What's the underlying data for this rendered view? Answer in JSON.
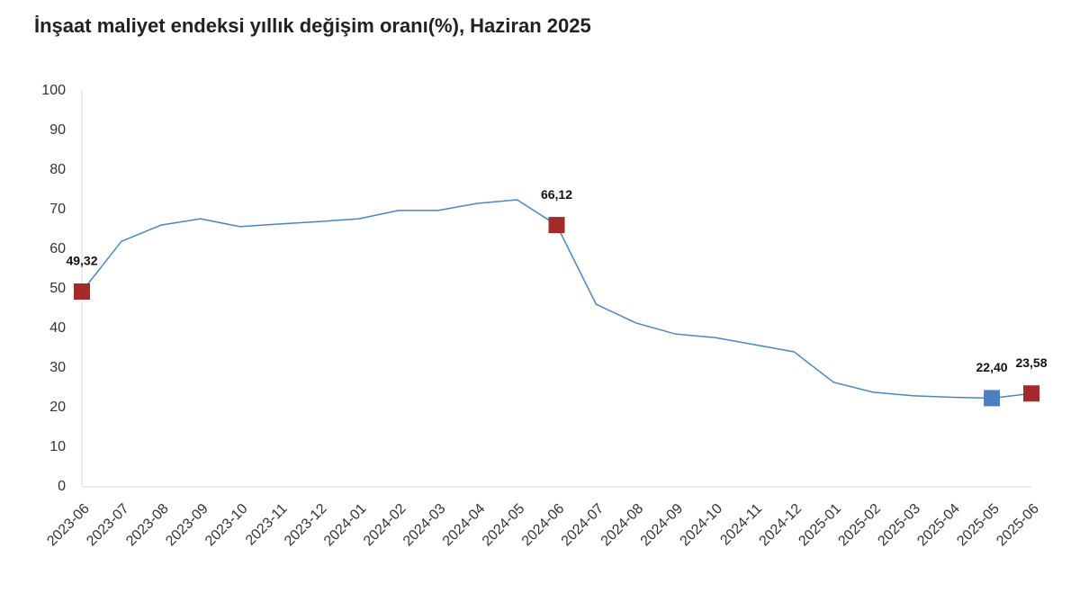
{
  "chart_data": {
    "type": "line",
    "title": "İnşaat maliyet endeksi yıllık değişim oranı(%), Haziran 2025",
    "categories": [
      "2023-06",
      "2023-07",
      "2023-08",
      "2023-09",
      "2023-10",
      "2023-11",
      "2023-12",
      "2024-01",
      "2024-02",
      "2024-03",
      "2024-04",
      "2024-05",
      "2024-06",
      "2024-07",
      "2024-08",
      "2024-09",
      "2024-10",
      "2024-11",
      "2024-12",
      "2025-01",
      "2025-02",
      "2025-03",
      "2025-04",
      "2025-05",
      "2025-06"
    ],
    "values": [
      49.32,
      62.0,
      66.1,
      67.7,
      65.7,
      66.4,
      67.0,
      67.7,
      69.8,
      69.8,
      71.6,
      72.5,
      66.12,
      46.1,
      41.4,
      38.6,
      37.7,
      35.9,
      34.1,
      26.4,
      23.9,
      23.0,
      22.6,
      22.4,
      23.58
    ],
    "value_labels": [
      "49,32",
      null,
      null,
      null,
      null,
      null,
      null,
      null,
      null,
      null,
      null,
      null,
      "66,12",
      null,
      null,
      null,
      null,
      null,
      null,
      null,
      null,
      null,
      null,
      "22,40",
      "23,58"
    ],
    "marker_colors": [
      "#a52a2a",
      null,
      null,
      null,
      null,
      null,
      null,
      null,
      null,
      null,
      null,
      null,
      "#a52a2a",
      null,
      null,
      null,
      null,
      null,
      null,
      null,
      null,
      null,
      null,
      "#4a7fc1",
      "#a52a2a"
    ],
    "color": "#4a86c5",
    "ylim": [
      0,
      100
    ],
    "yticks": [
      0,
      10,
      20,
      30,
      40,
      50,
      60,
      70,
      80,
      90,
      100
    ],
    "grid": false
  }
}
